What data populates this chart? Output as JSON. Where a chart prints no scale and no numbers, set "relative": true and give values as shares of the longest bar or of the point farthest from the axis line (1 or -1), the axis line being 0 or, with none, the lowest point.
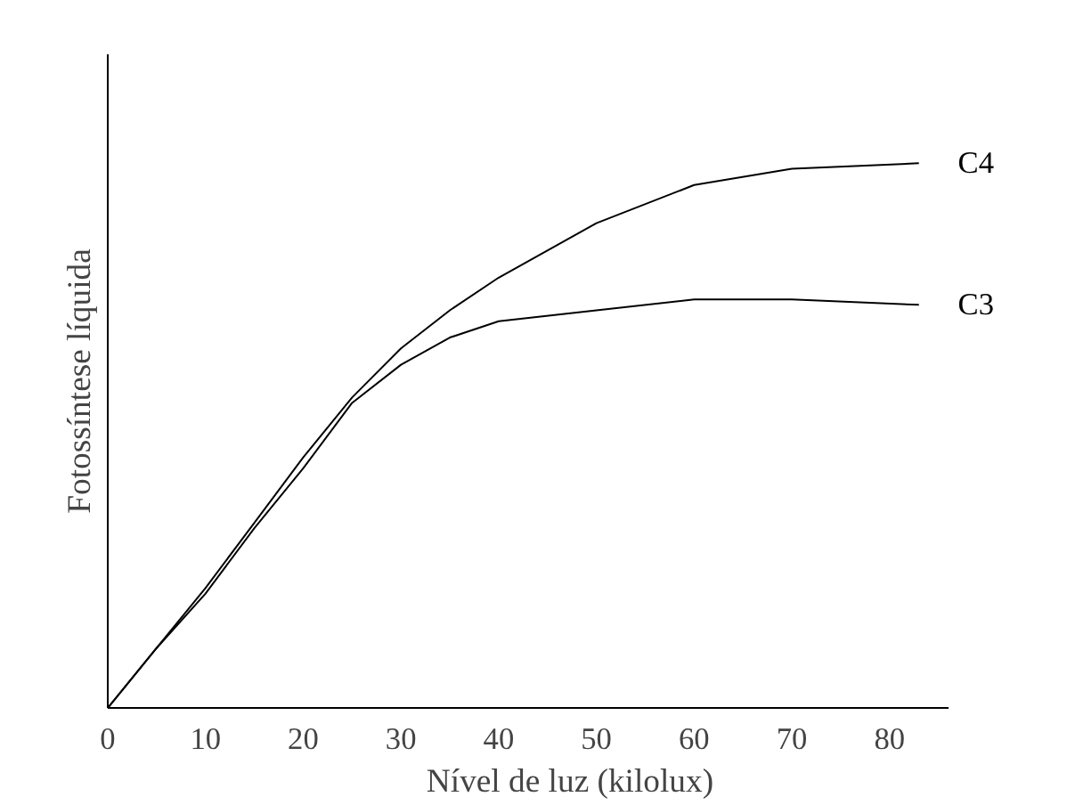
{
  "chart_data": {
    "type": "line",
    "xlabel": "Nível de luz (kilolux)",
    "ylabel": "Fotossíntese líquida",
    "relative": true,
    "xlim": [
      0,
      86
    ],
    "xticks": [
      0,
      10,
      20,
      30,
      40,
      50,
      60,
      70,
      80
    ],
    "tick_labels": "x",
    "grid": false,
    "marker": "none",
    "line_style": "solid",
    "x": [
      0,
      5,
      10,
      15,
      20,
      25,
      30,
      35,
      40,
      50,
      60,
      70,
      83
    ],
    "series": [
      {
        "name": "C4",
        "color": "#000000",
        "values": [
          0,
          0.11,
          0.22,
          0.34,
          0.46,
          0.57,
          0.66,
          0.73,
          0.79,
          0.89,
          0.96,
          0.99,
          1.0
        ]
      },
      {
        "name": "C3",
        "color": "#000000",
        "values": [
          0,
          0.11,
          0.21,
          0.33,
          0.44,
          0.56,
          0.63,
          0.68,
          0.71,
          0.73,
          0.75,
          0.75,
          0.74
        ]
      }
    ]
  }
}
